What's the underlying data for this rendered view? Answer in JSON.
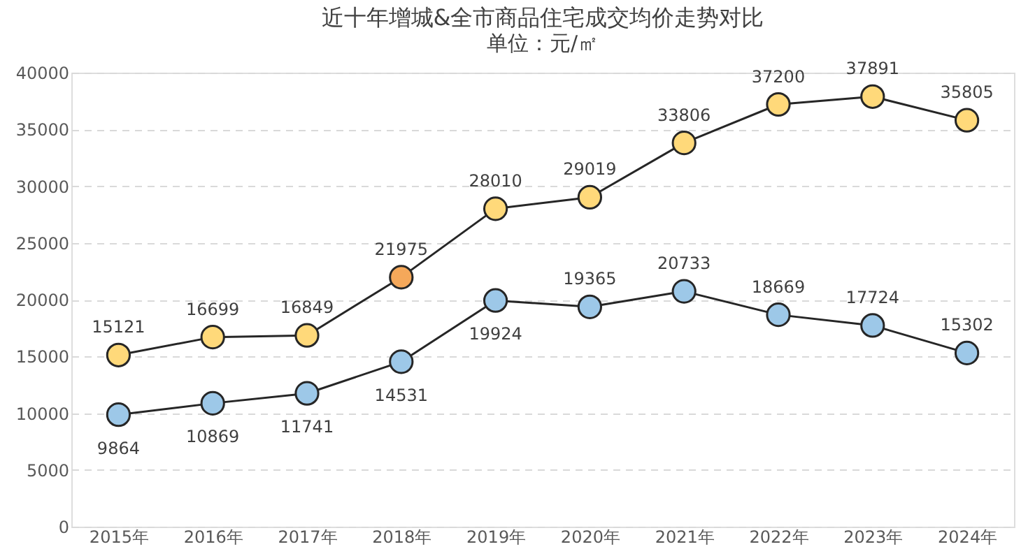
{
  "chart_data": {
    "type": "line",
    "title": "近十年增城&全市商品住宅成交均价走势对比",
    "subtitle": "单位：元/㎡",
    "categories": [
      "2015年",
      "2016年",
      "2017年",
      "2018年",
      "2019年",
      "2020年",
      "2021年",
      "2022年",
      "2023年",
      "2024年"
    ],
    "series": [
      {
        "color": "#262626",
        "colors": [
          "#ffd97a",
          "#ffd97a",
          "#ffd97a",
          "#f5a85a",
          "#ffd97a",
          "#ffd97a",
          "#ffd97a",
          "#ffd97a",
          "#ffd97a",
          "#ffd97a"
        ],
        "values": [
          15121,
          16699,
          16849,
          21975,
          28010,
          29019,
          33806,
          37200,
          37891,
          35805
        ]
      },
      {
        "color": "#262626",
        "colors": [
          "#9dc8e8",
          "#9dc8e8",
          "#9dc8e8",
          "#9dc8e8",
          "#9dc8e8",
          "#9dc8e8",
          "#9dc8e8",
          "#9dc8e8",
          "#9dc8e8",
          "#9dc8e8"
        ],
        "values": [
          9864,
          10869,
          11741,
          14531,
          19924,
          19365,
          20733,
          18669,
          17724,
          15302
        ]
      }
    ],
    "ylim": [
      0,
      40000
    ],
    "yticks": [
      0,
      5000,
      10000,
      15000,
      20000,
      25000,
      30000,
      35000,
      40000
    ],
    "grid": "y",
    "marker": "circle",
    "line_style": "solid",
    "data_labels": true
  }
}
